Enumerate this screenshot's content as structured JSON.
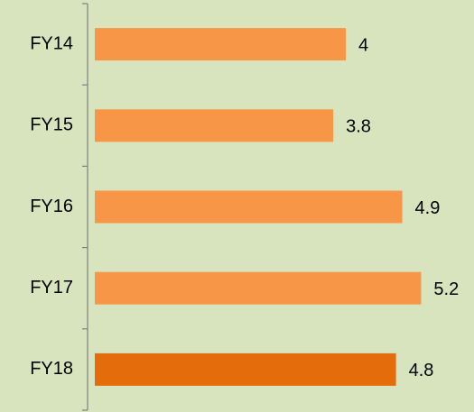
{
  "chart_data": {
    "type": "bar",
    "orientation": "horizontal",
    "categories": [
      "FY14",
      "FY15",
      "FY16",
      "FY17",
      "FY18"
    ],
    "values": [
      4,
      3.8,
      4.9,
      5.2,
      4.8
    ],
    "colors": [
      "#f79646",
      "#f79646",
      "#f79646",
      "#f79646",
      "#e46c0a"
    ]
  }
}
